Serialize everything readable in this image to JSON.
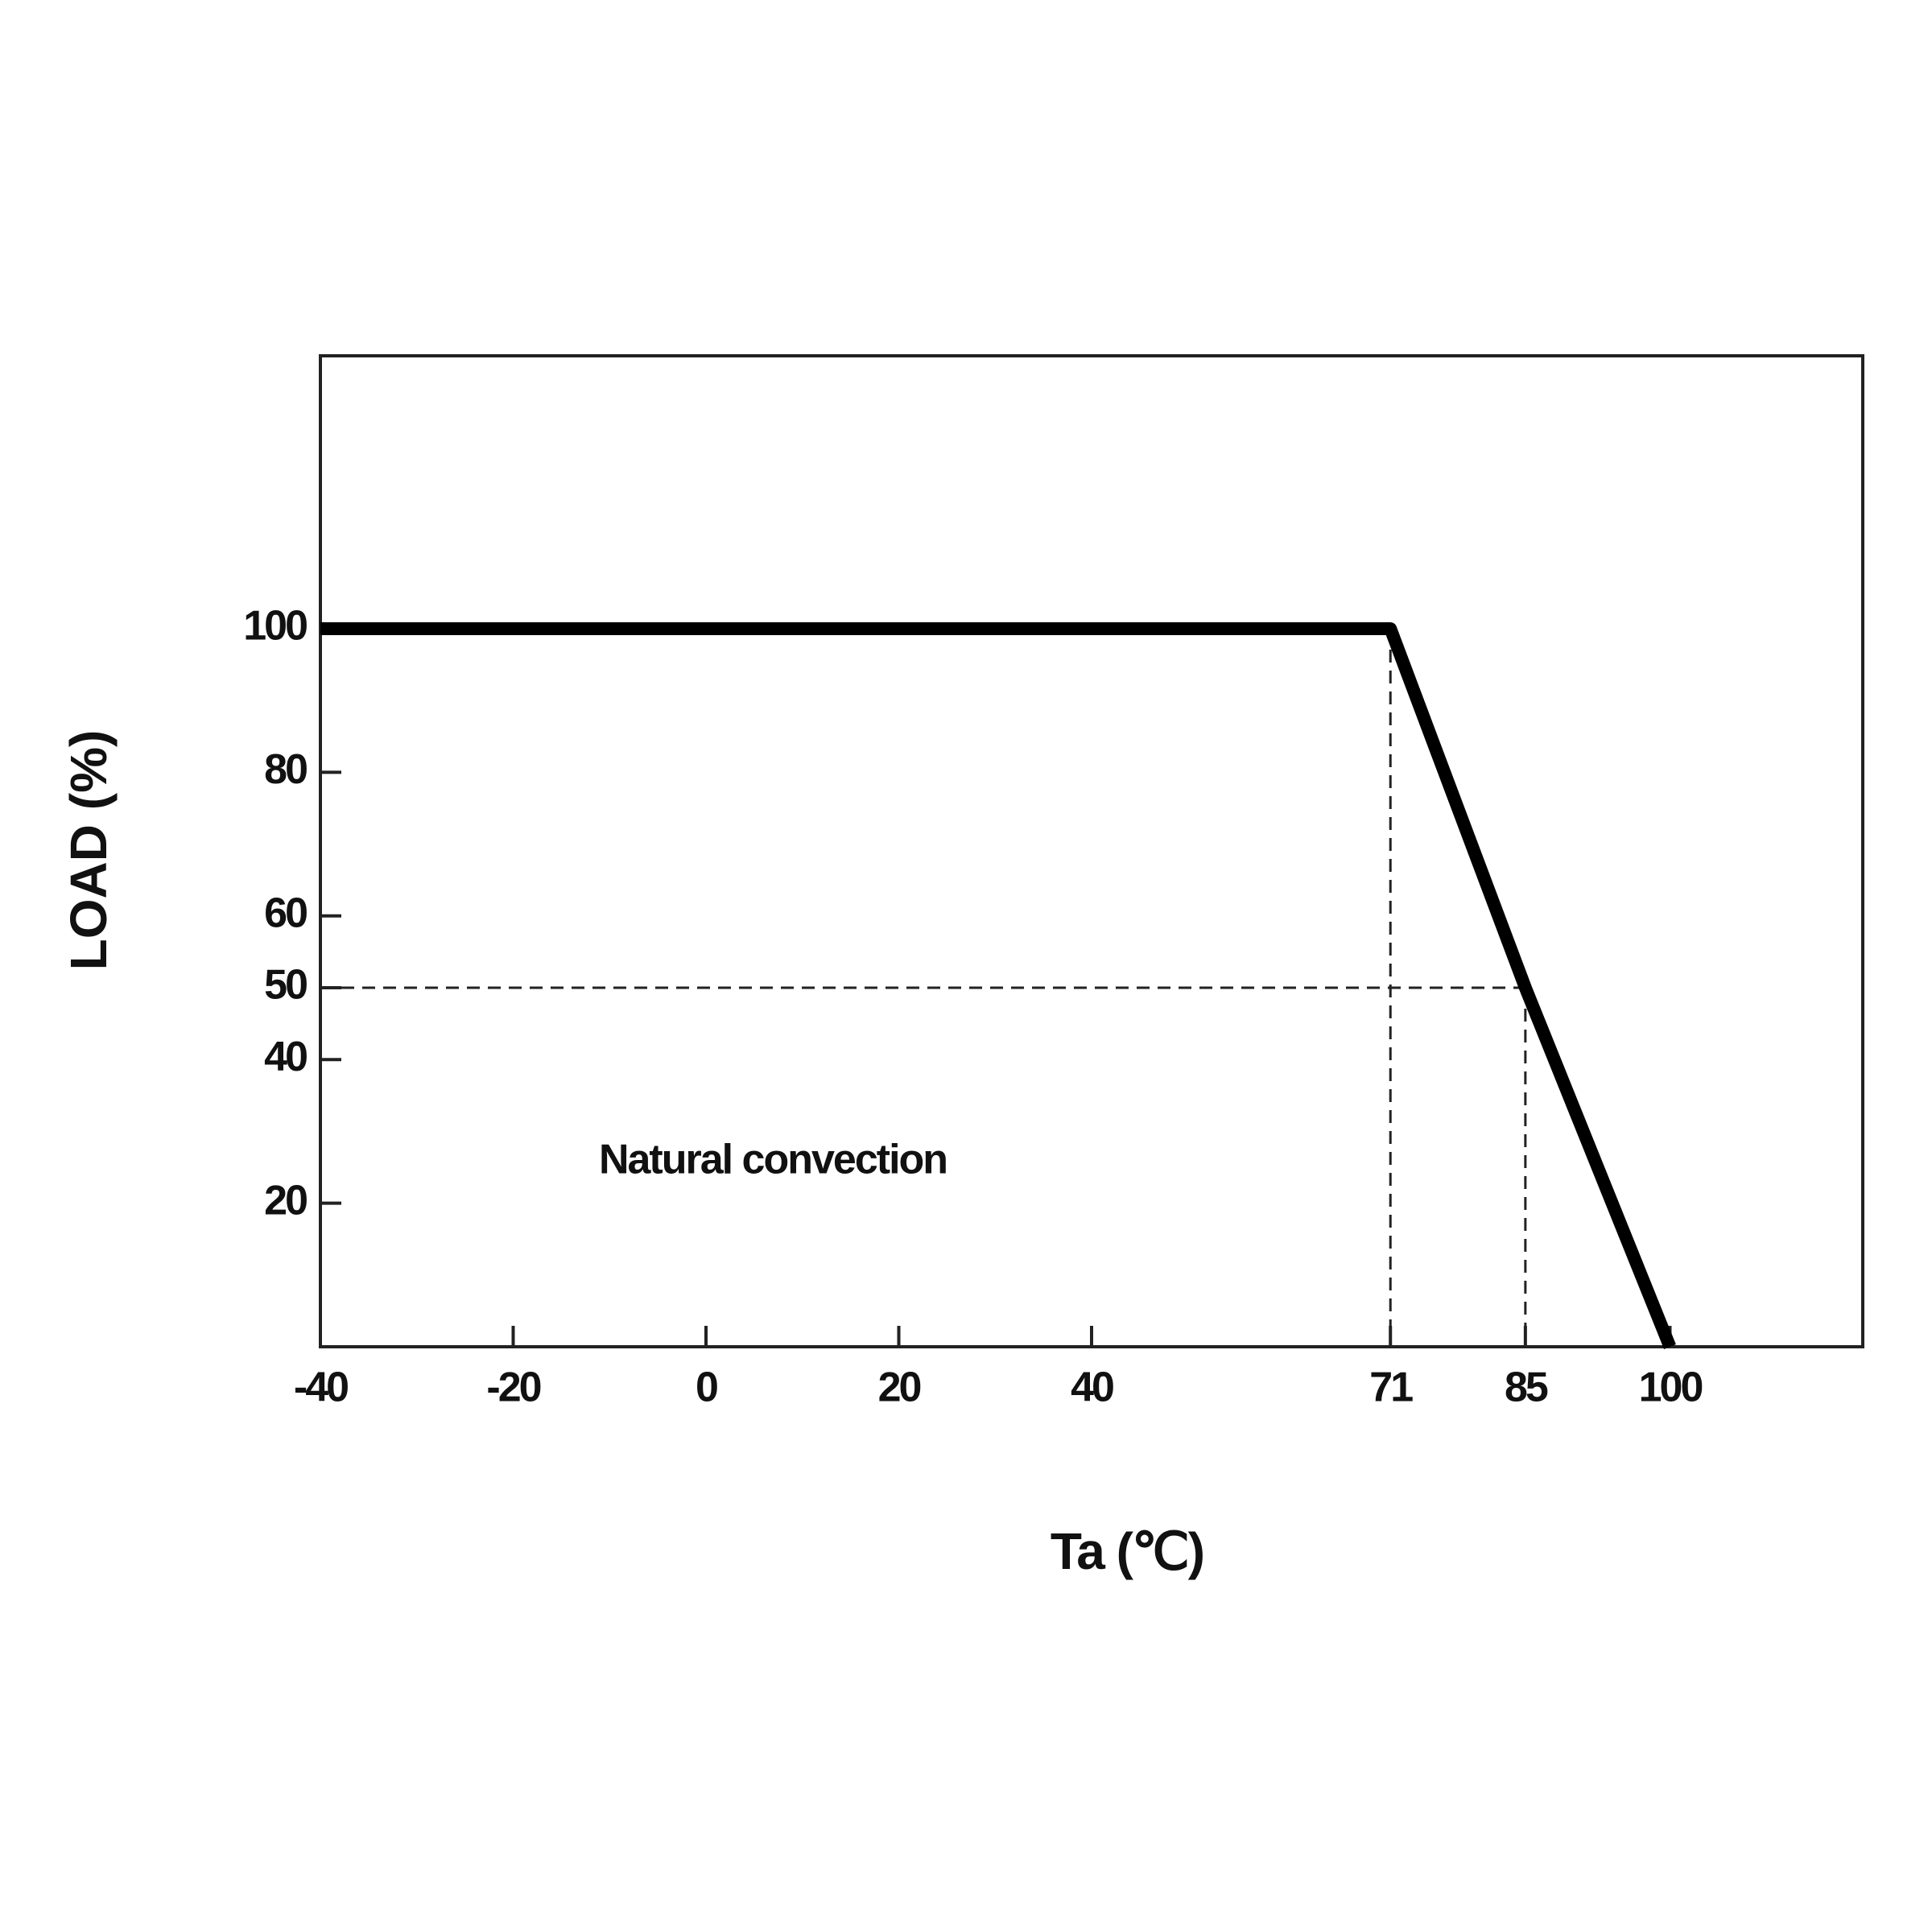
{
  "chart_data": {
    "type": "line",
    "x_label": "Ta (℃)",
    "y_label": "LOAD (%)",
    "annotation": "Natural convection",
    "x": [
      -40,
      71,
      85,
      100
    ],
    "series": [
      {
        "color": "#000000",
        "values": [
          100,
          100,
          50,
          0
        ]
      }
    ],
    "xlim": [
      -40,
      120
    ],
    "xticks": [
      -40,
      -20,
      0,
      20,
      40,
      71,
      85,
      100
    ],
    "ylim": [
      0,
      138
    ],
    "yticks": [
      20,
      40,
      50,
      60,
      80,
      100
    ]
  }
}
